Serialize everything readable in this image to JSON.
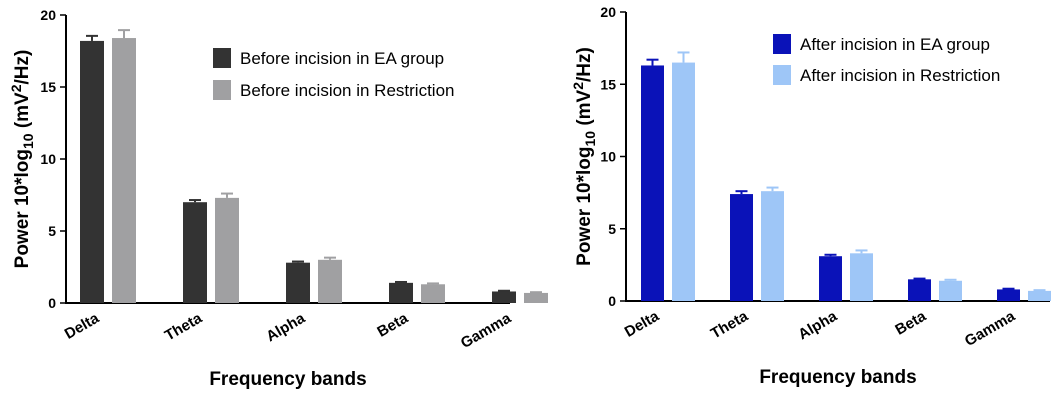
{
  "chart_data": [
    {
      "type": "bar",
      "categories": [
        "Delta",
        "Theta",
        "Alpha",
        "Beta",
        "Gamma"
      ],
      "series": [
        {
          "name": "Before incision in EA group",
          "values": [
            18.2,
            7.0,
            2.8,
            1.4,
            0.8
          ],
          "errors": [
            0.35,
            0.15,
            0.08,
            0.06,
            0.05
          ],
          "color": "#333333"
        },
        {
          "name": "Before incision in Restriction",
          "values": [
            18.4,
            7.3,
            3.0,
            1.3,
            0.7
          ],
          "errors": [
            0.55,
            0.3,
            0.15,
            0.06,
            0.05
          ],
          "color": "#a0a0a2"
        }
      ],
      "ylim": [
        0,
        20
      ],
      "yticks": [
        0,
        5,
        10,
        15,
        20
      ],
      "xlabel": "Frequency bands",
      "ylabel_parts": [
        "Power 10*log",
        "10",
        " (mV",
        "2",
        "/Hz)"
      ],
      "legend_position": "top-right"
    },
    {
      "type": "bar",
      "categories": [
        "Delta",
        "Theta",
        "Alpha",
        "Beta",
        "Gamma"
      ],
      "series": [
        {
          "name": "After incision in EA group",
          "values": [
            16.3,
            7.4,
            3.1,
            1.5,
            0.8
          ],
          "errors": [
            0.4,
            0.2,
            0.1,
            0.05,
            0.05
          ],
          "color": "#0a12b8"
        },
        {
          "name": "After incision in Restriction",
          "values": [
            16.5,
            7.6,
            3.3,
            1.4,
            0.7
          ],
          "errors": [
            0.7,
            0.25,
            0.2,
            0.07,
            0.05
          ],
          "color": "#9ec6f7"
        }
      ],
      "ylim": [
        0,
        20
      ],
      "yticks": [
        0,
        5,
        10,
        15,
        20
      ],
      "xlabel": "Frequency bands",
      "ylabel_parts": [
        "Power 10*log",
        "10",
        " (mV",
        "2",
        "/Hz)"
      ],
      "legend_position": "top-right"
    }
  ]
}
